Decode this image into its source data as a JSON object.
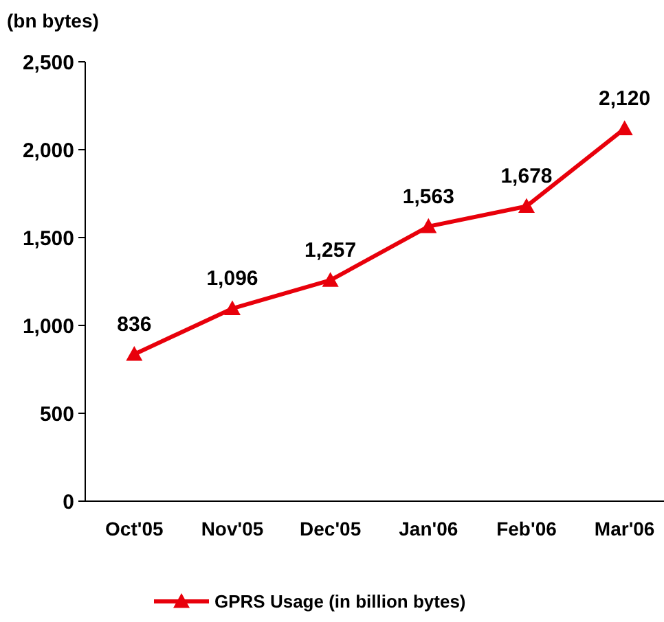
{
  "chart_data": {
    "type": "line",
    "ylabel": "(bn bytes)",
    "categories": [
      "Oct'05",
      "Nov'05",
      "Dec'05",
      "Jan'06",
      "Feb'06",
      "Mar'06"
    ],
    "series": [
      {
        "name": "GPRS Usage (in billion bytes)",
        "color": "#e8000b",
        "values": [
          836,
          1096,
          1257,
          1563,
          1678,
          2120
        ],
        "value_labels": [
          "836",
          "1,096",
          "1,257",
          "1,563",
          "1,678",
          "2,120"
        ]
      }
    ],
    "ylim": [
      0,
      2500
    ],
    "yticks": [
      {
        "value": 0,
        "label": "0"
      },
      {
        "value": 500,
        "label": "500"
      },
      {
        "value": 1000,
        "label": "1,000"
      },
      {
        "value": 1500,
        "label": "1,500"
      },
      {
        "value": 2000,
        "label": "2,000"
      },
      {
        "value": 2500,
        "label": "2,500"
      }
    ],
    "grid": false,
    "legend": "bottom",
    "marker": "triangle",
    "line_style": "solid"
  }
}
